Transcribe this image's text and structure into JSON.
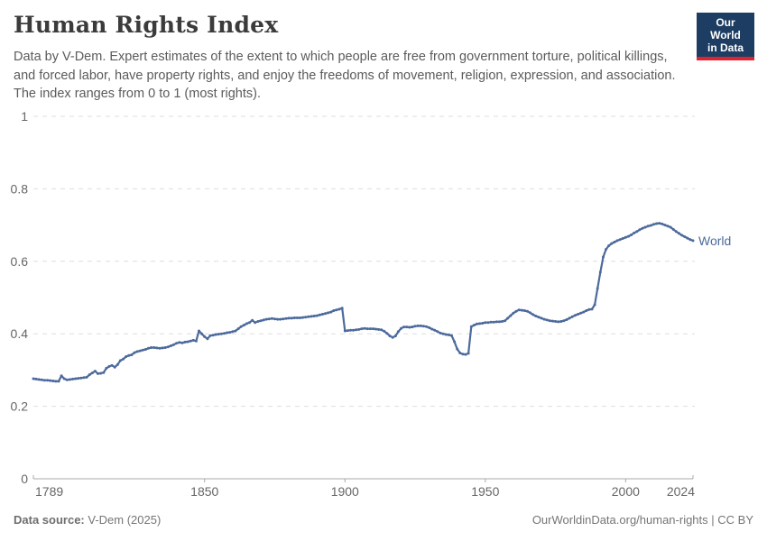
{
  "header": {
    "title": "Human Rights Index",
    "subtitle": "Data by V-Dem. Expert estimates of the extent to which people are free from government torture, political killings, and forced labor, have property rights, and enjoy the freedoms of movement, religion, expression, and association. The index ranges from 0 to 1 (most rights).",
    "logo": {
      "line1": "Our World",
      "line2": "in Data",
      "bg_color": "#1d3d63",
      "stripe_color": "#e0232e"
    }
  },
  "chart_data": {
    "type": "line",
    "title": "Human Rights Index",
    "xlabel": "",
    "ylabel": "",
    "xlim": [
      1789,
      2024
    ],
    "ylim": [
      0,
      1
    ],
    "x_ticks": [
      1789,
      1850,
      1900,
      1950,
      2000,
      2024
    ],
    "x_tick_labels": [
      "1789",
      "1850",
      "1900",
      "1950",
      "2000",
      "2024"
    ],
    "y_ticks": [
      0,
      0.2,
      0.4,
      0.6,
      0.8,
      1
    ],
    "y_tick_labels": [
      "0",
      "0.2",
      "0.4",
      "0.6",
      "0.8",
      "1"
    ],
    "grid": "horizontal-dashed",
    "grid_color": "#dedede",
    "axis_color": "#a8a8a8",
    "tick_label_color": "#666666",
    "legend_position": "end-of-line-label",
    "series": [
      {
        "name": "World",
        "color": "#4C6A9C",
        "start_year": 1789,
        "values": [
          0.276,
          0.275,
          0.274,
          0.273,
          0.272,
          0.272,
          0.271,
          0.27,
          0.269,
          0.269,
          0.284,
          0.276,
          0.273,
          0.274,
          0.275,
          0.276,
          0.277,
          0.278,
          0.279,
          0.28,
          0.287,
          0.292,
          0.297,
          0.29,
          0.291,
          0.293,
          0.305,
          0.31,
          0.313,
          0.308,
          0.315,
          0.326,
          0.33,
          0.337,
          0.34,
          0.342,
          0.348,
          0.351,
          0.353,
          0.355,
          0.357,
          0.36,
          0.362,
          0.362,
          0.361,
          0.36,
          0.361,
          0.362,
          0.364,
          0.367,
          0.37,
          0.374,
          0.376,
          0.375,
          0.377,
          0.378,
          0.38,
          0.382,
          0.38,
          0.408,
          0.4,
          0.392,
          0.386,
          0.395,
          0.396,
          0.398,
          0.399,
          0.4,
          0.401,
          0.403,
          0.404,
          0.406,
          0.408,
          0.414,
          0.42,
          0.424,
          0.428,
          0.431,
          0.437,
          0.431,
          0.434,
          0.436,
          0.438,
          0.44,
          0.441,
          0.442,
          0.441,
          0.44,
          0.44,
          0.441,
          0.442,
          0.443,
          0.443,
          0.444,
          0.444,
          0.444,
          0.445,
          0.446,
          0.447,
          0.448,
          0.449,
          0.45,
          0.452,
          0.454,
          0.456,
          0.458,
          0.46,
          0.464,
          0.466,
          0.468,
          0.471,
          0.408,
          0.409,
          0.41,
          0.41,
          0.411,
          0.412,
          0.414,
          0.415,
          0.414,
          0.414,
          0.414,
          0.413,
          0.412,
          0.411,
          0.407,
          0.401,
          0.394,
          0.39,
          0.394,
          0.406,
          0.415,
          0.419,
          0.419,
          0.418,
          0.419,
          0.421,
          0.422,
          0.422,
          0.421,
          0.42,
          0.417,
          0.413,
          0.41,
          0.406,
          0.402,
          0.4,
          0.398,
          0.397,
          0.395,
          0.378,
          0.358,
          0.347,
          0.344,
          0.343,
          0.346,
          0.42,
          0.424,
          0.427,
          0.428,
          0.429,
          0.431,
          0.431,
          0.432,
          0.432,
          0.433,
          0.433,
          0.434,
          0.436,
          0.443,
          0.45,
          0.457,
          0.462,
          0.466,
          0.465,
          0.464,
          0.462,
          0.458,
          0.453,
          0.449,
          0.446,
          0.443,
          0.44,
          0.438,
          0.436,
          0.435,
          0.434,
          0.433,
          0.434,
          0.436,
          0.439,
          0.443,
          0.447,
          0.451,
          0.454,
          0.457,
          0.46,
          0.464,
          0.467,
          0.468,
          0.48,
          0.525,
          0.57,
          0.612,
          0.633,
          0.643,
          0.649,
          0.653,
          0.657,
          0.66,
          0.663,
          0.666,
          0.669,
          0.673,
          0.678,
          0.682,
          0.687,
          0.691,
          0.694,
          0.697,
          0.699,
          0.702,
          0.704,
          0.705,
          0.703,
          0.7,
          0.697,
          0.694,
          0.688,
          0.682,
          0.677,
          0.672,
          0.668,
          0.664,
          0.66,
          0.657
        ]
      }
    ]
  },
  "footer": {
    "source_label": "Data source:",
    "source_value": " V-Dem (2025)",
    "link": "OurWorldinData.org/human-rights",
    "separator": " | ",
    "license": "CC BY"
  }
}
